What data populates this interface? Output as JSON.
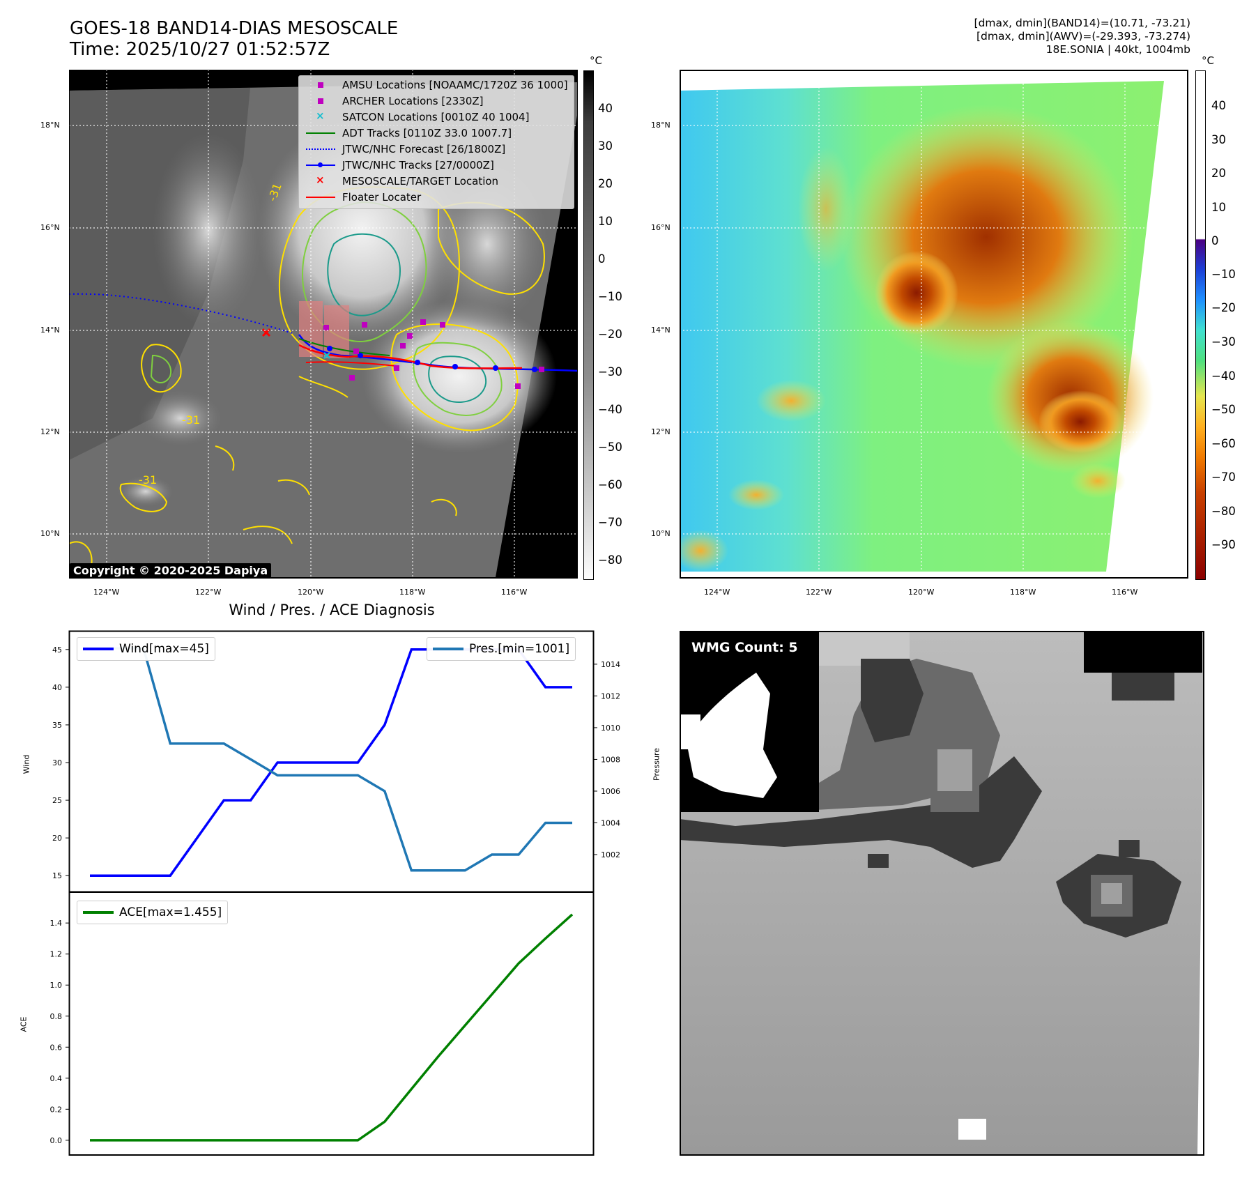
{
  "header": {
    "title_line1": "GOES-18 BAND14-DIAS MESOSCALE",
    "title_line2": "Time: 2025/10/27 01:52:57Z",
    "info_line1": "[dmax, dmin](BAND14)=(10.71, -73.21)",
    "info_line2": "[dmax, dmin](AWV)=(-29.393, -73.274)",
    "info_line3": "18E.SONIA | 40kt, 1004mb"
  },
  "map_axes": {
    "lat_ticks": [
      "18°N",
      "16°N",
      "14°N",
      "12°N",
      "10°N"
    ],
    "lon_ticks": [
      "124°W",
      "122°W",
      "120°W",
      "118°W",
      "116°W"
    ]
  },
  "colorbar_gray": {
    "unit": "°C",
    "ticks": [
      "40",
      "30",
      "20",
      "10",
      "0",
      "−10",
      "−20",
      "−30",
      "−40",
      "−50",
      "−60",
      "−70",
      "−80"
    ]
  },
  "colorbar_color": {
    "unit": "°C",
    "ticks": [
      "40",
      "30",
      "20",
      "10",
      "0",
      "−10",
      "−20",
      "−30",
      "−40",
      "−50",
      "−60",
      "−70",
      "−80",
      "−90"
    ]
  },
  "legend": {
    "items": [
      "AMSU Locations [NOAAMC/1720Z 36 1000]",
      "ARCHER Locations [2330Z]",
      "SATCON Locations [0010Z 40 1004]",
      "ADT Tracks [0110Z 33.0 1007.7]",
      "JTWC/NHC Forecast [26/1800Z]",
      "JTWC/NHC Tracks [27/0000Z]",
      "MESOSCALE/TARGET Location",
      "Floater Locater"
    ],
    "contour_label": "-31",
    "colors": {
      "amsu": "#bf00bf",
      "archer": "#bf00bf",
      "satcon": "#17becf",
      "adt": "#008000",
      "forecast": "#0000ff",
      "tracks": "#0000ff",
      "target": "#ff0000",
      "floater": "#ff0000"
    }
  },
  "copyright": "Copyright © 2020-2025 Dapiya",
  "wmg": {
    "label": "WMG Count: 5"
  },
  "chart_data": [
    {
      "type": "line",
      "title": "Wind / Pres. / ACE Diagnosis",
      "ylabel": "Wind",
      "y2label": "Pressure",
      "ylim": [
        14,
        46
      ],
      "y2lim": [
        1000.2,
        1015.4
      ],
      "yticks": [
        "45",
        "40",
        "35",
        "30",
        "25",
        "20",
        "15"
      ],
      "y2ticks": [
        "1014",
        "1012",
        "1010",
        "1008",
        "1006",
        "1004",
        "1002"
      ],
      "series": [
        {
          "name": "Wind[max=45]",
          "color": "#0000ff",
          "values": [
            15,
            15,
            15,
            15,
            20,
            25,
            25,
            30,
            30,
            30,
            30,
            35,
            45,
            45,
            45,
            45,
            45,
            40,
            40
          ]
        },
        {
          "name": "Pres.[min=1001]",
          "color": "#1f77b4",
          "axis": "right",
          "values": [
            1015,
            1015,
            1015,
            1009,
            1009,
            1009,
            1008,
            1007,
            1007,
            1007,
            1007,
            1006,
            1001,
            1001,
            1001,
            1002,
            1002,
            1004,
            1004
          ]
        }
      ]
    },
    {
      "type": "line",
      "ylabel": "ACE",
      "ylim": [
        -0.05,
        1.54
      ],
      "yticks": [
        "1.4",
        "1.2",
        "1.0",
        "0.8",
        "0.6",
        "0.4",
        "0.2",
        "0.0"
      ],
      "series": [
        {
          "name": "ACE[max=1.455]",
          "color": "#008000",
          "values": [
            0,
            0,
            0,
            0,
            0,
            0,
            0,
            0,
            0,
            0,
            0,
            0.12,
            0.33,
            0.54,
            0.74,
            0.94,
            1.14,
            1.3,
            1.455
          ]
        }
      ]
    }
  ]
}
